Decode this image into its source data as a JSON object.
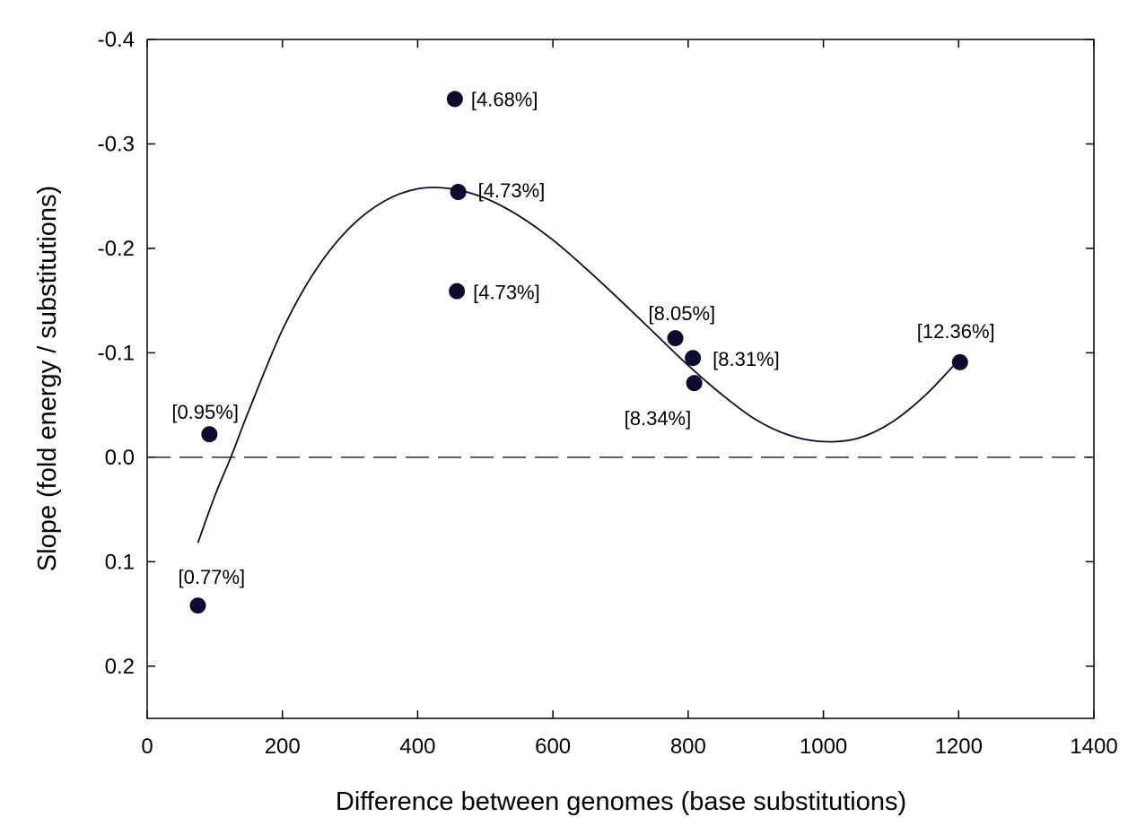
{
  "chart_data": {
    "type": "scatter",
    "xlabel": "Difference between genomes (base substitutions)",
    "ylabel": "Slope (fold energy / substitutions)",
    "xlim": [
      0,
      1400
    ],
    "ylim": [
      0.25,
      -0.4
    ],
    "y_axis_inverted": true,
    "x_ticks": [
      0,
      200,
      400,
      600,
      800,
      1000,
      1200,
      1400
    ],
    "y_ticks": [
      -0.4,
      -0.3,
      -0.2,
      -0.1,
      0.0,
      0.1,
      0.2
    ],
    "y_tick_labels": [
      "-0.4",
      "-0.3",
      "-0.2",
      "-0.1",
      "0.0",
      "0.1",
      "0.2"
    ],
    "x_tick_labels": [
      "0",
      "200",
      "400",
      "600",
      "800",
      "1000",
      "1200",
      "1400"
    ],
    "grid": false,
    "reference_line": {
      "y": 0.0,
      "style": "dashed"
    },
    "points": [
      {
        "x": 75,
        "y": 0.142,
        "label": "[0.77%]"
      },
      {
        "x": 92,
        "y": -0.022,
        "label": "[0.95%]"
      },
      {
        "x": 455,
        "y": -0.343,
        "label": "[4.68%]"
      },
      {
        "x": 460,
        "y": -0.254,
        "label": "[4.73%]"
      },
      {
        "x": 458,
        "y": -0.159,
        "label": "[4.73%]"
      },
      {
        "x": 781,
        "y": -0.114,
        "label": "[8.05%]"
      },
      {
        "x": 807,
        "y": -0.095,
        "label": "[8.31%]"
      },
      {
        "x": 809,
        "y": -0.071,
        "label": "[8.34%]"
      },
      {
        "x": 1202,
        "y": -0.091,
        "label": "[12.36%]"
      }
    ],
    "fit_curve": {
      "type": "polynomial",
      "x": [
        75,
        100,
        125,
        150,
        200,
        250,
        300,
        350,
        400,
        450,
        500,
        550,
        600,
        650,
        700,
        750,
        800,
        850,
        900,
        950,
        1000,
        1050,
        1100,
        1150,
        1200
      ],
      "y": [
        0.082,
        0.037,
        -0.002,
        -0.044,
        -0.122,
        -0.18,
        -0.22,
        -0.245,
        -0.257,
        -0.257,
        -0.248,
        -0.231,
        -0.208,
        -0.18,
        -0.15,
        -0.119,
        -0.088,
        -0.06,
        -0.036,
        -0.021,
        -0.015,
        -0.018,
        -0.033,
        -0.059,
        -0.093
      ]
    },
    "colors": {
      "points": "#0b0b2e",
      "curve": "#0b0b2e",
      "axes": "#000000"
    }
  }
}
